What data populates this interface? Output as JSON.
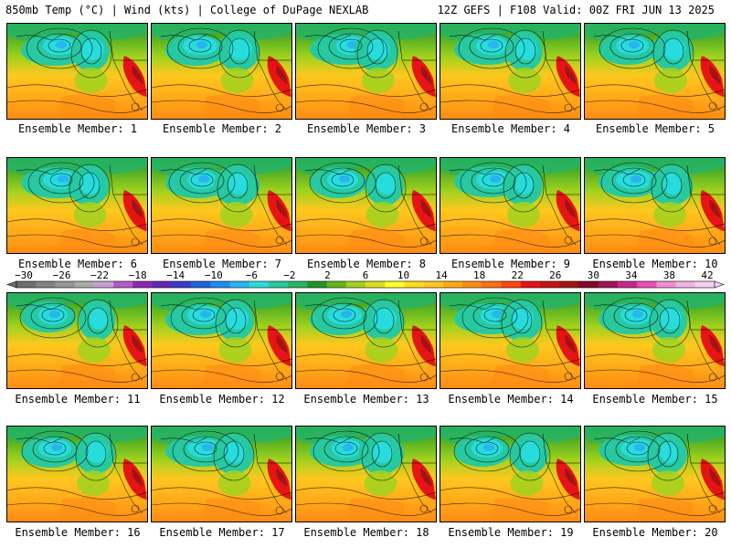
{
  "header": {
    "left": "850mb Temp (°C) | Wind (kts) | College of DuPage NEXLAB",
    "right": "12Z GEFS | F108 Valid: 00Z FRI JUN 13 2025"
  },
  "member_prefix": "Ensemble Member: ",
  "members": [
    "Ensemble Member: 1",
    "Ensemble Member: 2",
    "Ensemble Member: 3",
    "Ensemble Member: 4",
    "Ensemble Member: 5",
    "Ensemble Member: 6",
    "Ensemble Member: 7",
    "Ensemble Member: 8",
    "Ensemble Member: 9",
    "Ensemble Member: 10",
    "Ensemble Member: 11",
    "Ensemble Member: 12",
    "Ensemble Member: 13",
    "Ensemble Member: 14",
    "Ensemble Member: 15",
    "Ensemble Member: 16",
    "Ensemble Member: 17",
    "Ensemble Member: 18",
    "Ensemble Member: 19",
    "Ensemble Member: 20"
  ],
  "colorbar": {
    "unit": "°C",
    "ticks": [
      "-30",
      "-26",
      "-22",
      "-18",
      "-14",
      "-10",
      "-6",
      "-2",
      "2",
      "6",
      "10",
      "14",
      "18",
      "22",
      "26",
      "30",
      "34",
      "38",
      "42"
    ],
    "colors": [
      "#6e6e6e",
      "#828282",
      "#969696",
      "#aaaaaa",
      "#c8a0d2",
      "#b45ac8",
      "#8c28b4",
      "#6428b4",
      "#3c3cc8",
      "#1e64dc",
      "#1e8cf0",
      "#28b4f0",
      "#28dcdc",
      "#28c8a0",
      "#28b464",
      "#1e9628",
      "#64b41e",
      "#a0d21e",
      "#dcdc1e",
      "#ffff28",
      "#ffdc1e",
      "#ffc81e",
      "#ffaa14",
      "#ff8c14",
      "#ff6e14",
      "#ff4614",
      "#e61414",
      "#c81414",
      "#a01414",
      "#820a28",
      "#a0145a",
      "#c8288c",
      "#e650b4",
      "#f08cd2",
      "#f0b4e6",
      "#f5d2f0"
    ]
  }
}
